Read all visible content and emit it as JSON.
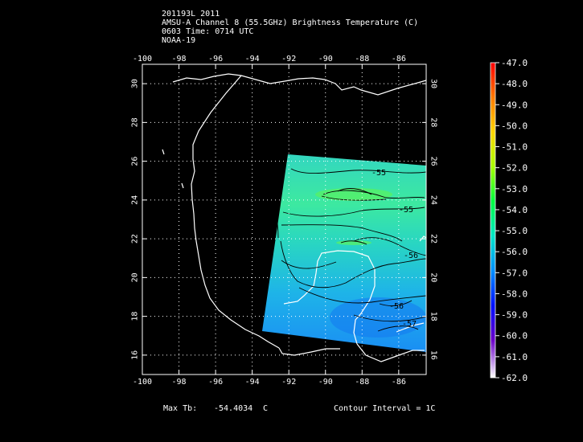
{
  "header": {
    "line1": "201193L 2011",
    "line2": "AMSU-A Channel 8 (55.5GHz) Brightness Temperature (C)",
    "line3": "0603 Time: 0714 UTC",
    "line4": "NOAA-19"
  },
  "map": {
    "lon_range": [
      -100,
      -84.5
    ],
    "lat_range": [
      15,
      31
    ],
    "lon_ticks": [
      "-100",
      "-98",
      "-96",
      "-94",
      "-92",
      "-90",
      "-88",
      "-86"
    ],
    "lat_ticks": [
      "30",
      "28",
      "26",
      "24",
      "22",
      "20",
      "18",
      "16"
    ],
    "grid": "dotted",
    "contour_labels": [
      "-55",
      "-55",
      "-56",
      "-56",
      "-57"
    ]
  },
  "colorbar": {
    "labels": [
      "-47.0",
      "-48.0",
      "-49.0",
      "-50.0",
      "-51.0",
      "-52.0",
      "-53.0",
      "-54.0",
      "-55.0",
      "-56.0",
      "-57.0",
      "-58.0",
      "-59.0",
      "-60.0",
      "-61.0",
      "-62.0"
    ],
    "colors": [
      "#ff0000",
      "#ff7a00",
      "#ffd500",
      "#a8ff00",
      "#00ff40",
      "#00e6c8",
      "#0090ff",
      "#0010ff",
      "#6a00c8",
      "#ffffff"
    ]
  },
  "footer": {
    "max_label": "Max Tb:",
    "max_value": "-54.4034",
    "max_unit": "C",
    "contour_interval": "Contour Interval = 1C"
  }
}
